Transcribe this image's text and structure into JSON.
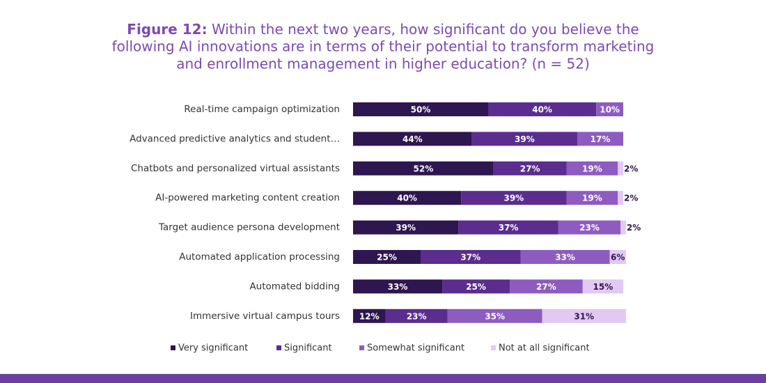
{
  "chart_data": {
    "type": "stacked-bar-horizontal",
    "figure_label": "Figure 12:",
    "title_lines": [
      "Within the next two years, how significant do you believe the",
      "following AI innovations are in terms of their potential to transform marketing",
      "and enrollment management in higher education? (n = 52)"
    ],
    "categories": [
      "Real-time campaign optimization",
      "Advanced predictive analytics and student…",
      "Chatbots and personalized virtual assistants",
      "AI-powered marketing content creation",
      "Target audience persona development",
      "Automated application processing",
      "Automated bidding",
      "Immersive virtual campus tours"
    ],
    "xlim": [
      0,
      100
    ],
    "series": [
      {
        "name": "Very significant",
        "color": "#2e1650",
        "values": [
          50,
          44,
          52,
          40,
          39,
          25,
          33,
          12
        ],
        "value_labels": [
          "50%",
          "44%",
          "52%",
          "40%",
          "39%",
          "25%",
          "33%",
          "12%"
        ]
      },
      {
        "name": "Significant",
        "color": "#5b2d8e",
        "values": [
          40,
          39,
          27,
          39,
          37,
          37,
          25,
          23
        ],
        "value_labels": [
          "40%",
          "39%",
          "27%",
          "39%",
          "37%",
          "37%",
          "25%",
          "23%"
        ]
      },
      {
        "name": "Somewhat significant",
        "color": "#8e5cc0",
        "values": [
          10,
          17,
          19,
          19,
          23,
          33,
          27,
          35
        ],
        "value_labels": [
          "10%",
          "17%",
          "19%",
          "19%",
          "23%",
          "33%",
          "27%",
          "35%"
        ]
      },
      {
        "name": "Not at all significant",
        "color": "#e2c9f2",
        "values": [
          0,
          0,
          2,
          2,
          2,
          6,
          15,
          31
        ],
        "value_labels": [
          null,
          null,
          "2%",
          "2%",
          "2%",
          "6%",
          "15%",
          "31%"
        ]
      }
    ],
    "legend": "bottom"
  }
}
